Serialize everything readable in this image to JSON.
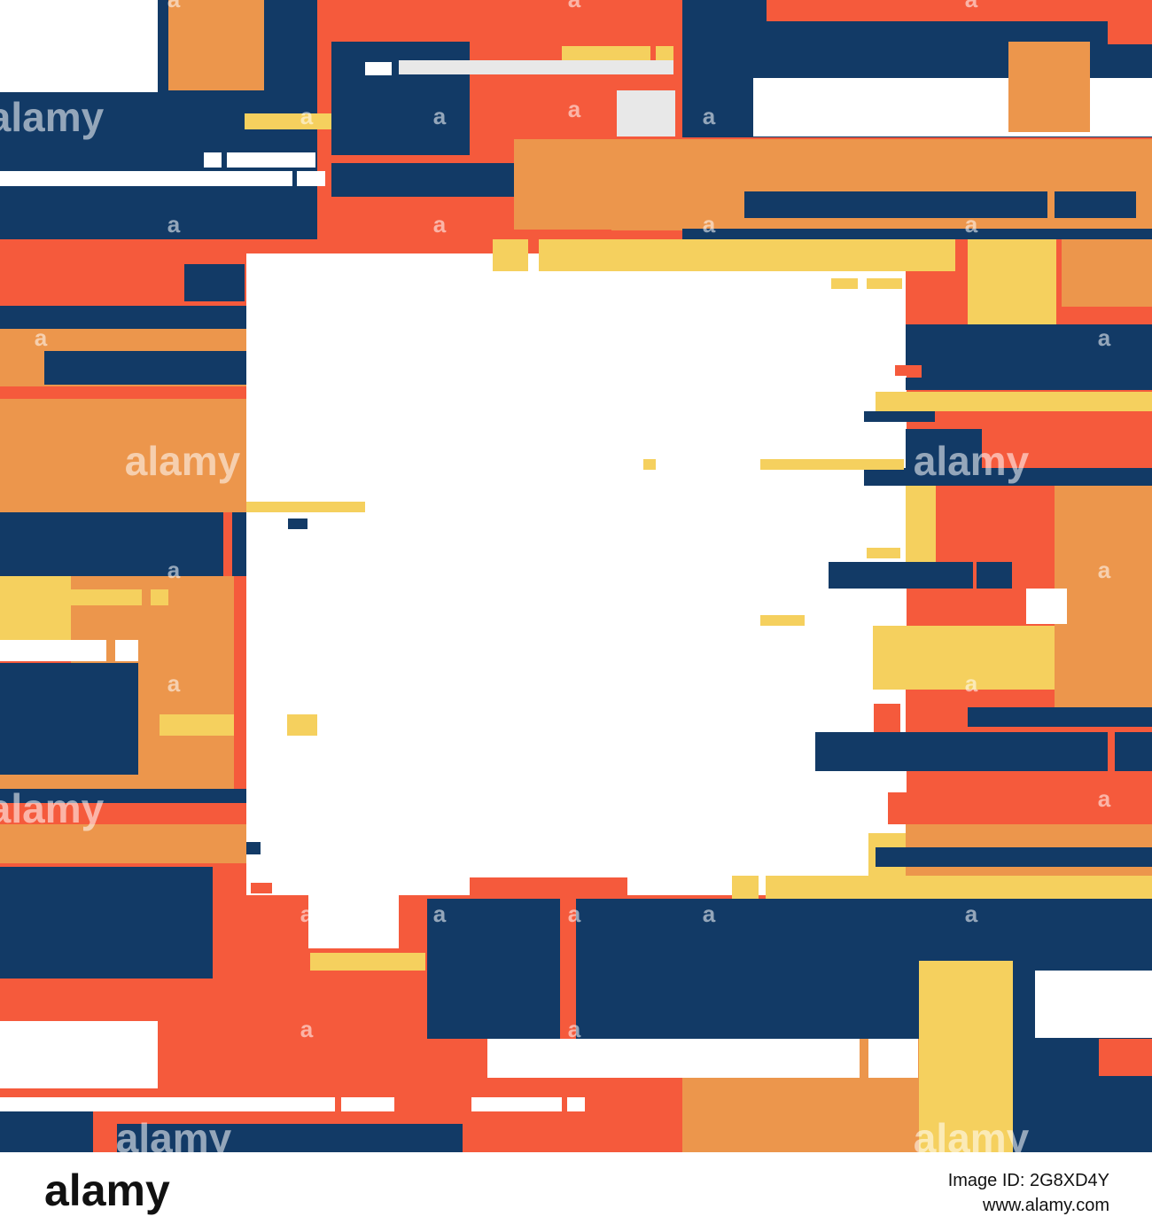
{
  "watermark": {
    "brand": "alamy",
    "mark": "a"
  },
  "footer": {
    "logo": "alamy",
    "image_id": "Image ID: 2G8XD4Y",
    "url": "www.alamy.com"
  }
}
